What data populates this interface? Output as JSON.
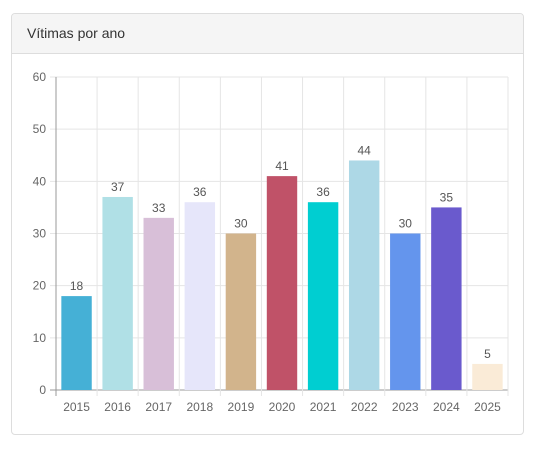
{
  "panel": {
    "title": "Vítimas por ano"
  },
  "chart_data": {
    "type": "bar",
    "title": "Vítimas por ano",
    "xlabel": "",
    "ylabel": "",
    "categories": [
      "2015",
      "2016",
      "2017",
      "2018",
      "2019",
      "2020",
      "2021",
      "2022",
      "2023",
      "2024",
      "2025"
    ],
    "values": [
      18,
      37,
      33,
      36,
      30,
      41,
      36,
      44,
      30,
      35,
      5
    ],
    "colors": [
      "#45b0d6",
      "#b0e0e6",
      "#d8bfd8",
      "#e6e6fa",
      "#d2b48c",
      "#c05268",
      "#00ced1",
      "#add8e6",
      "#6495ed",
      "#6a5acd",
      "#faebd7"
    ],
    "ylim": [
      0,
      60
    ],
    "yticks": [
      0,
      10,
      20,
      30,
      40,
      50,
      60
    ],
    "grid": true,
    "legend": "none",
    "data_labels": true
  }
}
